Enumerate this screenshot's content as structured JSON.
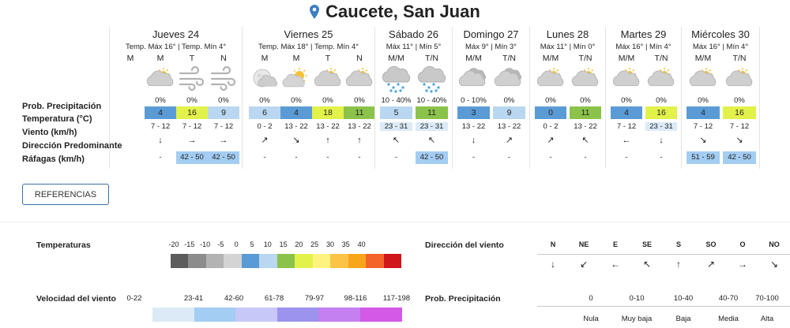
{
  "title": "Caucete, San Juan",
  "row_labels": {
    "prob": "Prob. Precipitación",
    "temp": "Temperatura (°C)",
    "wind": "Viento (km/h)",
    "dir": "Dirección Predominante",
    "gust": "Ráfagas (km/h)"
  },
  "days": [
    {
      "name": "Jueves 24",
      "sub": "Temp. Máx 16° | Temp. Mín 4°",
      "cols": [
        {
          "period": "M",
          "icon": "none",
          "prob": "",
          "temp": "",
          "tempColor": "",
          "wind": "",
          "dir": "",
          "gust": "",
          "gustHl": false
        },
        {
          "period": "M",
          "icon": "partly-cloudy",
          "prob": "0%",
          "temp": "4",
          "tempColor": "#5b9bd5",
          "wind": "7 - 12",
          "dir": "↓",
          "gust": "-",
          "gustHl": false
        },
        {
          "period": "T",
          "icon": "wind",
          "prob": "0%",
          "temp": "16",
          "tempColor": "#e2f24a",
          "wind": "7 - 12",
          "dir": "→",
          "gust": "42 - 50",
          "gustHl": true
        },
        {
          "period": "N",
          "icon": "wind",
          "prob": "0%",
          "temp": "9",
          "tempColor": "#b9d7f0",
          "wind": "7 - 12",
          "dir": "→",
          "gust": "42 - 50",
          "gustHl": true
        }
      ]
    },
    {
      "name": "Viernes 25",
      "sub": "Temp. Máx 18° | Temp. Mín 4°",
      "cols": [
        {
          "period": "M",
          "icon": "moon-cloudy",
          "prob": "0%",
          "temp": "6",
          "tempColor": "#b9d7f0",
          "wind": "0 - 2",
          "dir": "↗",
          "gust": "-",
          "gustHl": false
        },
        {
          "period": "M",
          "icon": "sun-cloud",
          "prob": "0%",
          "temp": "4",
          "tempColor": "#5b9bd5",
          "wind": "13 - 22",
          "dir": "↘",
          "gust": "-",
          "gustHl": false
        },
        {
          "period": "T",
          "icon": "partly-cloudy",
          "prob": "0%",
          "temp": "18",
          "tempColor": "#e2f24a",
          "wind": "13 - 22",
          "dir": "↑",
          "gust": "-",
          "gustHl": false
        },
        {
          "period": "N",
          "icon": "partly-cloudy",
          "prob": "0%",
          "temp": "11",
          "tempColor": "#8bc34a",
          "wind": "13 - 22",
          "dir": "↑",
          "gust": "-",
          "gustHl": false
        }
      ]
    },
    {
      "name": "Sábado 26",
      "sub": "Máx 11° | Mín 5°",
      "cols": [
        {
          "period": "M/M",
          "icon": "snow",
          "prob": "10 - 40%",
          "temp": "5",
          "tempColor": "#b9d7f0",
          "wind": "23 - 31",
          "windHl": true,
          "dir": "↖",
          "gust": "-",
          "gustHl": false
        },
        {
          "period": "T/N",
          "icon": "snow",
          "prob": "10 - 40%",
          "temp": "11",
          "tempColor": "#8bc34a",
          "wind": "23 - 31",
          "windHl": true,
          "dir": "↖",
          "gust": "42 - 50",
          "gustHl": true
        }
      ]
    },
    {
      "name": "Domingo 27",
      "sub": "Máx 9° | Mín 3°",
      "cols": [
        {
          "period": "M/M",
          "icon": "cloudy",
          "prob": "0 - 10%",
          "temp": "3",
          "tempColor": "#5b9bd5",
          "wind": "13 - 22",
          "dir": "↓",
          "gust": "-",
          "gustHl": false
        },
        {
          "period": "T/N",
          "icon": "cloudy",
          "prob": "0%",
          "temp": "9",
          "tempColor": "#b9d7f0",
          "wind": "13 - 22",
          "dir": "↗",
          "gust": "-",
          "gustHl": false
        }
      ]
    },
    {
      "name": "Lunes 28",
      "sub": "Máx 11° | Mín 0°",
      "cols": [
        {
          "period": "M/M",
          "icon": "partly-cloudy",
          "prob": "0%",
          "temp": "0",
          "tempColor": "#5b9bd5",
          "wind": "0 - 2",
          "dir": "↗",
          "gust": "-",
          "gustHl": false
        },
        {
          "period": "T/N",
          "icon": "partly-cloudy",
          "prob": "0%",
          "temp": "11",
          "tempColor": "#8bc34a",
          "wind": "13 - 22",
          "dir": "↖",
          "gust": "-",
          "gustHl": false
        }
      ]
    },
    {
      "name": "Martes 29",
      "sub": "Máx 16° | Mín 4°",
      "cols": [
        {
          "period": "M/M",
          "icon": "partly-cloudy",
          "prob": "0%",
          "temp": "4",
          "tempColor": "#5b9bd5",
          "wind": "7 - 12",
          "dir": "←",
          "gust": "-",
          "gustHl": false
        },
        {
          "period": "T/N",
          "icon": "partly-cloudy",
          "prob": "0%",
          "temp": "16",
          "tempColor": "#e2f24a",
          "wind": "23 - 31",
          "windHl": true,
          "dir": "↓",
          "gust": "-",
          "gustHl": false
        }
      ]
    },
    {
      "name": "Miércoles 30",
      "sub": "Máx 16° | Mín 4°",
      "cols": [
        {
          "period": "M/M",
          "icon": "partly-cloudy",
          "prob": "0%",
          "temp": "4",
          "tempColor": "#5b9bd5",
          "wind": "7 - 12",
          "dir": "↘",
          "gust": "51 - 59",
          "gustHl": true
        },
        {
          "period": "T/N",
          "icon": "partly-cloudy",
          "prob": "0%",
          "temp": "16",
          "tempColor": "#e2f24a",
          "wind": "7 - 12",
          "dir": "↘",
          "gust": "42 - 50",
          "gustHl": true
        }
      ]
    }
  ],
  "referencias_label": "REFERENCIAS",
  "legend": {
    "temp_title": "Temperaturas",
    "temp_scale": [
      "-20",
      "-15",
      "-10",
      "-5",
      "0",
      "5",
      "10",
      "15",
      "20",
      "25",
      "30",
      "35",
      "40"
    ],
    "temp_colors": [
      "#5c5c5c",
      "#8c8c8c",
      "#b3b3b3",
      "#d4d4d4",
      "#5b9bd5",
      "#b9d7f0",
      "#8bc34a",
      "#e2f24a",
      "#fff380",
      "#fbc447",
      "#f8a51c",
      "#f4632a",
      "#d0161b"
    ],
    "dir_title": "Dirección del viento",
    "dir_heads": [
      "N",
      "NE",
      "E",
      "SE",
      "S",
      "SO",
      "O",
      "NO"
    ],
    "dir_arrows": [
      "↓",
      "↙",
      "←",
      "↖",
      "↑",
      "↗",
      "→",
      "↘"
    ],
    "wind_title": "Velocidad del viento",
    "wind_ranges": [
      "0-22",
      "23-41",
      "42-60",
      "61-78",
      "79-97",
      "98-116",
      "117-198"
    ],
    "wind_colors": [
      "#dbeaf6",
      "#a3cdf2",
      "#c8c8f8",
      "#9c93ee",
      "#c480f0",
      "#d25ae6"
    ],
    "prob_title": "Prob. Precipitación",
    "prob_values": [
      "0",
      "0-10",
      "10-40",
      "40-70",
      "70-100"
    ],
    "prob_names": [
      "Nula",
      "Muy baja",
      "Baja",
      "Media",
      "Alta"
    ]
  }
}
